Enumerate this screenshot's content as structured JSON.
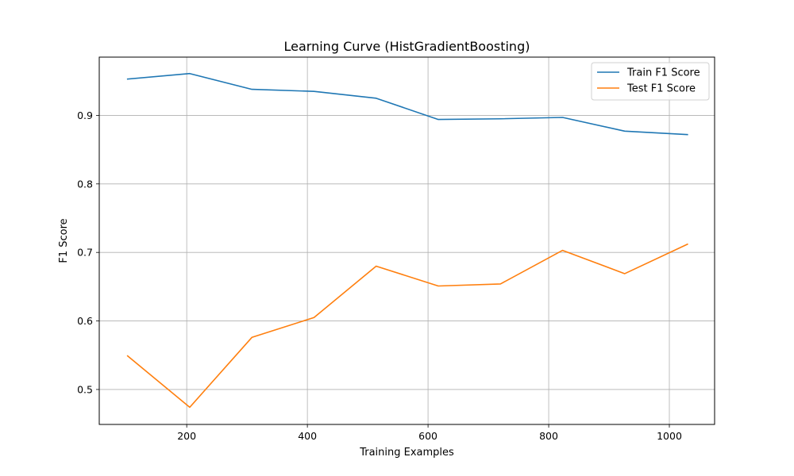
{
  "chart_data": {
    "type": "line",
    "title": "Learning Curve (HistGradientBoosting)",
    "xlabel": "Training Examples",
    "ylabel": "F1 Score",
    "xlim": [
      55,
      1075
    ],
    "ylim": [
      0.449,
      0.985
    ],
    "xticks": [
      200,
      400,
      600,
      800,
      1000
    ],
    "yticks": [
      0.5,
      0.6,
      0.7,
      0.8,
      0.9
    ],
    "xtick_labels": [
      "200",
      "400",
      "600",
      "800",
      "1000"
    ],
    "ytick_labels": [
      "0.5",
      "0.6",
      "0.7",
      "0.8",
      "0.9"
    ],
    "grid": true,
    "legend_position": "top-right",
    "x": [
      102,
      205,
      308,
      411,
      514,
      617,
      720,
      823,
      926,
      1030
    ],
    "series": [
      {
        "name": "Train F1 Score",
        "color": "#1f77b4",
        "values": [
          0.953,
          0.961,
          0.938,
          0.935,
          0.925,
          0.894,
          0.895,
          0.897,
          0.877,
          0.872
        ]
      },
      {
        "name": "Test F1 Score",
        "color": "#ff7f0e",
        "values": [
          0.549,
          0.474,
          0.576,
          0.605,
          0.68,
          0.651,
          0.654,
          0.703,
          0.669,
          0.712
        ]
      }
    ]
  }
}
